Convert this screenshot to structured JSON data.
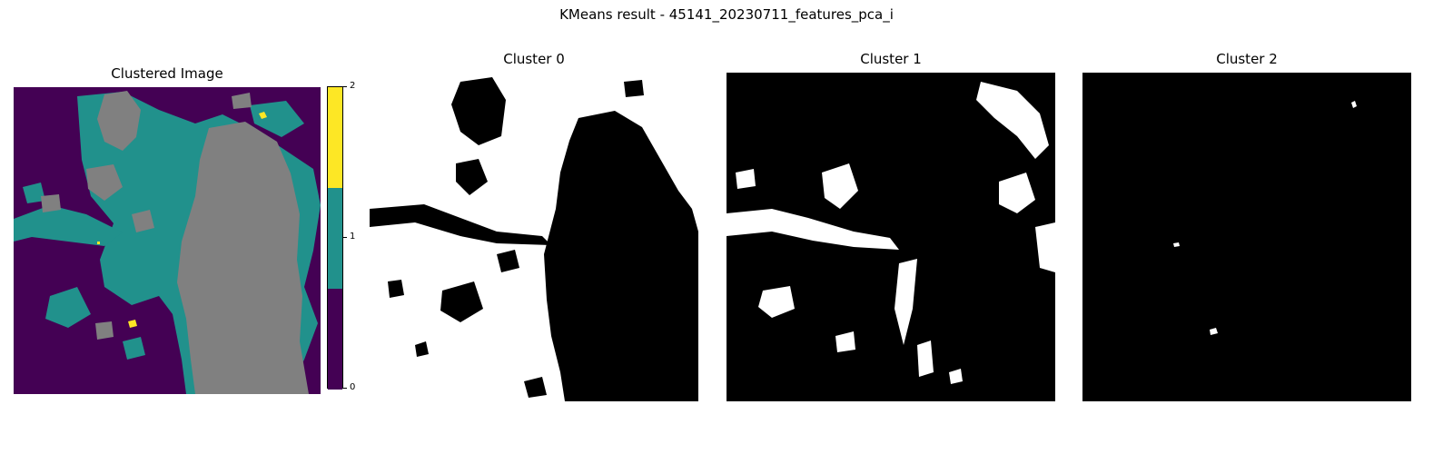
{
  "figure": {
    "suptitle": "KMeans result - 45141_20230711_features_pca_i"
  },
  "panels": [
    {
      "title": "Clustered Image"
    },
    {
      "title": "Cluster 0"
    },
    {
      "title": "Cluster 1"
    },
    {
      "title": "Cluster 2"
    }
  ],
  "colorbar": {
    "ticks": [
      "0",
      "1",
      "2"
    ],
    "colors": [
      "#440154",
      "#21918c",
      "#fde725"
    ]
  },
  "palette": {
    "cluster_0": "#440154",
    "cluster_1": "#21918c",
    "cluster_2": "#fde725",
    "water": "#808080",
    "mask_on": "#ffffff",
    "mask_off": "#000000"
  }
}
